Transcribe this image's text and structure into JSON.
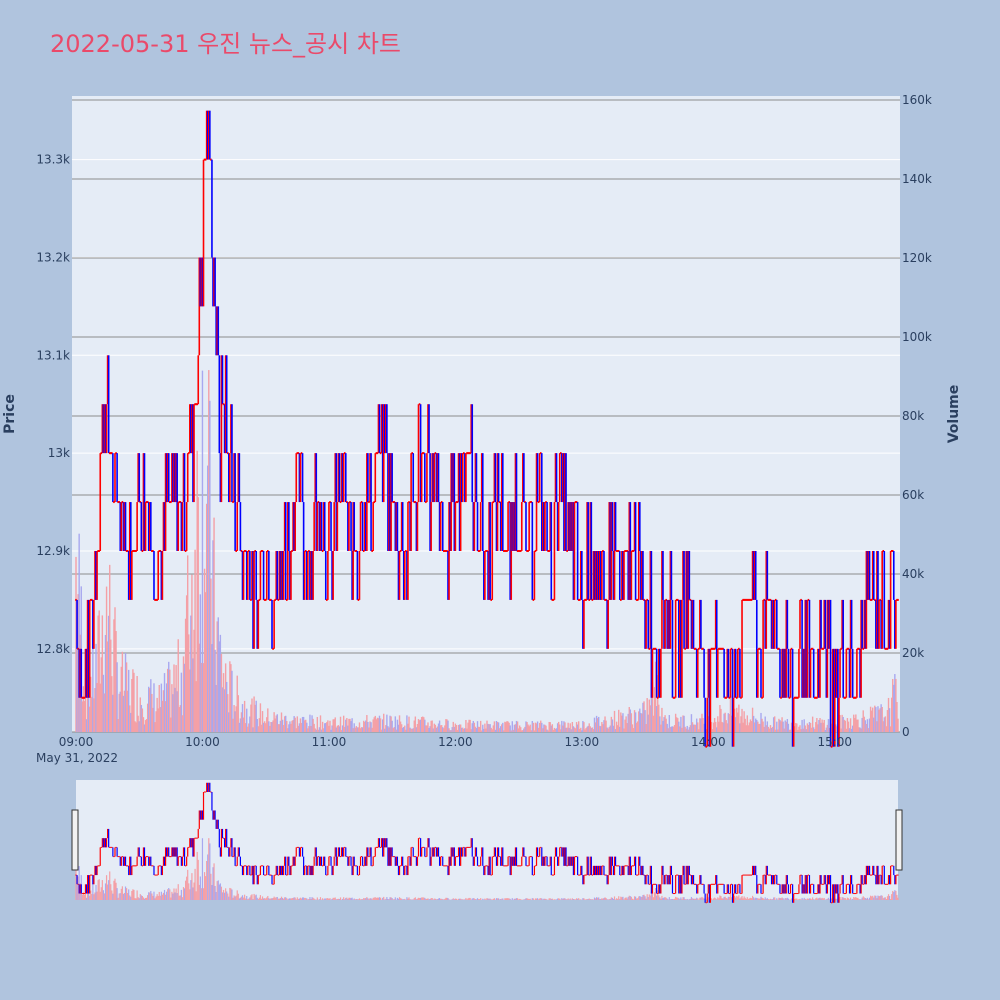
{
  "title": "2022-05-31 우진 뉴스_공시 차트",
  "colors": {
    "up": "#ff0000",
    "down": "#0000ff",
    "background": "#b0c4de",
    "plot_bg": "#e5ecf6",
    "title": "#ea4a6a"
  },
  "chart_data": {
    "type": "candlestick",
    "ylabel": "Price",
    "y2label": "Volume",
    "price_ylim": [
      12715,
      13365
    ],
    "volume_ylim": [
      0,
      160000
    ],
    "price_ticks": [
      "12.8k",
      "12.9k",
      "13k",
      "13.1k",
      "13.2k",
      "13.3k"
    ],
    "price_tick_values": [
      12800,
      12900,
      13000,
      13100,
      13200,
      13300
    ],
    "volume_ticks": [
      "0",
      "20k",
      "40k",
      "60k",
      "80k",
      "100k",
      "120k",
      "140k",
      "160k"
    ],
    "volume_tick_values": [
      0,
      20000,
      40000,
      60000,
      80000,
      100000,
      120000,
      140000,
      160000
    ],
    "x_ticks": [
      "09:00",
      "10:00",
      "11:00",
      "12:00",
      "13:00",
      "14:00",
      "15:00"
    ],
    "x_date_label": "May 31, 2022",
    "x_range": [
      "09:00",
      "15:30"
    ],
    "price_path": [
      [
        "09:00",
        12850
      ],
      [
        "09:03",
        12750
      ],
      [
        "09:06",
        12800
      ],
      [
        "09:08",
        12850
      ],
      [
        "09:10",
        12900
      ],
      [
        "09:12",
        13000
      ],
      [
        "09:14",
        13050
      ],
      [
        "09:16",
        13000
      ],
      [
        "09:18",
        12950
      ],
      [
        "09:22",
        12950
      ],
      [
        "09:25",
        12900
      ],
      [
        "09:30",
        12950
      ],
      [
        "09:40",
        12900
      ],
      [
        "09:45",
        12950
      ],
      [
        "09:50",
        12950
      ],
      [
        "09:55",
        13000
      ],
      [
        "09:58",
        13100
      ],
      [
        "10:00",
        13200
      ],
      [
        "10:02",
        13350
      ],
      [
        "10:04",
        13250
      ],
      [
        "10:06",
        13150
      ],
      [
        "10:08",
        13000
      ],
      [
        "10:10",
        13050
      ],
      [
        "10:12",
        13000
      ],
      [
        "10:15",
        12950
      ],
      [
        "10:20",
        12900
      ],
      [
        "10:25",
        12850
      ],
      [
        "10:30",
        12900
      ],
      [
        "10:35",
        12850
      ],
      [
        "10:40",
        12900
      ],
      [
        "10:45",
        12950
      ],
      [
        "10:50",
        12900
      ],
      [
        "10:55",
        12950
      ],
      [
        "11:00",
        12900
      ],
      [
        "11:05",
        12950
      ],
      [
        "11:12",
        12900
      ],
      [
        "11:18",
        12950
      ],
      [
        "11:25",
        13000
      ],
      [
        "11:30",
        12950
      ],
      [
        "11:35",
        12900
      ],
      [
        "11:40",
        12950
      ],
      [
        "11:45",
        13000
      ],
      [
        "11:50",
        12950
      ],
      [
        "11:55",
        12900
      ],
      [
        "12:00",
        12950
      ],
      [
        "12:05",
        13000
      ],
      [
        "12:10",
        12950
      ],
      [
        "12:15",
        12900
      ],
      [
        "12:20",
        12950
      ],
      [
        "12:25",
        12900
      ],
      [
        "12:30",
        12950
      ],
      [
        "12:35",
        12900
      ],
      [
        "12:40",
        12950
      ],
      [
        "12:45",
        12900
      ],
      [
        "12:50",
        12950
      ],
      [
        "12:55",
        12900
      ],
      [
        "13:00",
        12850
      ],
      [
        "13:05",
        12900
      ],
      [
        "13:10",
        12850
      ],
      [
        "13:15",
        12900
      ],
      [
        "13:20",
        12850
      ],
      [
        "13:25",
        12900
      ],
      [
        "13:30",
        12850
      ],
      [
        "13:35",
        12800
      ],
      [
        "13:40",
        12850
      ],
      [
        "13:45",
        12800
      ],
      [
        "13:50",
        12850
      ],
      [
        "13:55",
        12800
      ],
      [
        "14:00",
        12750
      ],
      [
        "14:05",
        12800
      ],
      [
        "14:10",
        12750
      ],
      [
        "14:15",
        12800
      ],
      [
        "14:20",
        12850
      ],
      [
        "14:25",
        12800
      ],
      [
        "14:30",
        12850
      ],
      [
        "14:35",
        12800
      ],
      [
        "14:40",
        12750
      ],
      [
        "14:45",
        12800
      ],
      [
        "14:50",
        12750
      ],
      [
        "14:55",
        12800
      ],
      [
        "15:00",
        12750
      ],
      [
        "15:05",
        12800
      ],
      [
        "15:10",
        12750
      ],
      [
        "15:15",
        12850
      ],
      [
        "15:20",
        12850
      ],
      [
        "15:30",
        12850
      ]
    ],
    "volume_profile": [
      [
        "09:00",
        45000
      ],
      [
        "09:05",
        12000
      ],
      [
        "09:10",
        18000
      ],
      [
        "09:15",
        35000
      ],
      [
        "09:20",
        14000
      ],
      [
        "09:30",
        10000
      ],
      [
        "09:40",
        8000
      ],
      [
        "09:50",
        16000
      ],
      [
        "09:55",
        40000
      ],
      [
        "10:00",
        75000
      ],
      [
        "10:03",
        60000
      ],
      [
        "10:06",
        30000
      ],
      [
        "10:10",
        15000
      ],
      [
        "10:15",
        10000
      ],
      [
        "10:20",
        7000
      ],
      [
        "10:30",
        4000
      ],
      [
        "10:45",
        3000
      ],
      [
        "11:00",
        2500
      ],
      [
        "11:30",
        3000
      ],
      [
        "12:00",
        2000
      ],
      [
        "12:30",
        1800
      ],
      [
        "13:00",
        2000
      ],
      [
        "13:30",
        5000
      ],
      [
        "13:35",
        12000
      ],
      [
        "13:40",
        3000
      ],
      [
        "14:00",
        3000
      ],
      [
        "14:10",
        6000
      ],
      [
        "14:30",
        2500
      ],
      [
        "15:00",
        2500
      ],
      [
        "15:25",
        5000
      ],
      [
        "15:30",
        12000
      ]
    ]
  }
}
